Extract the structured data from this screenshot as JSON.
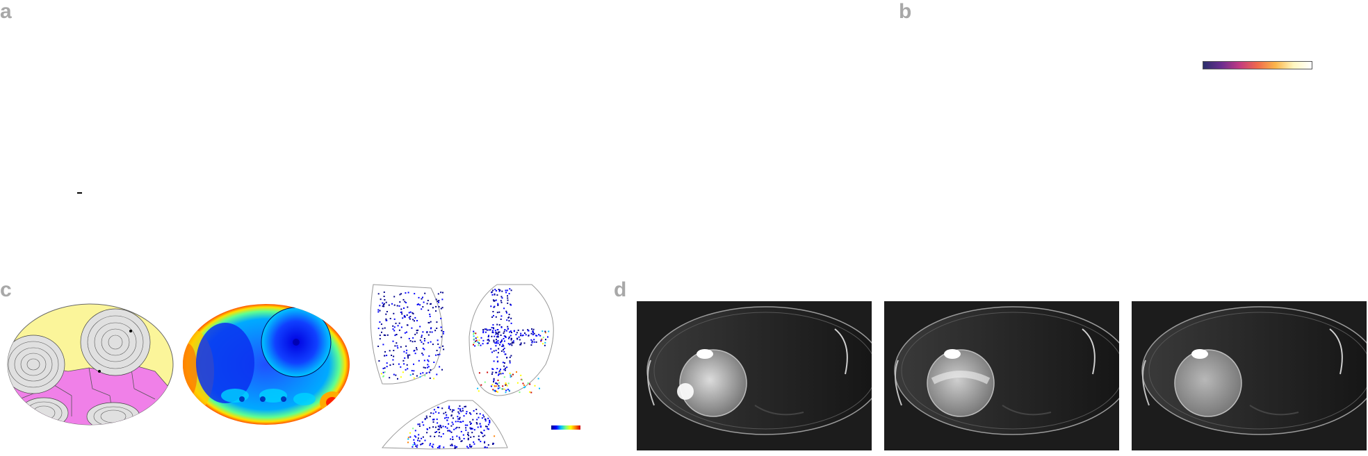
{
  "figure": {
    "panels": {
      "a": {
        "letter": "a"
      },
      "b": {
        "letter": "b"
      },
      "c": {
        "letter": "c"
      },
      "d": {
        "letter": "d"
      }
    },
    "colors": {
      "letter_gray": "#a8a8a8",
      "droplet_fill": "#fbf59a",
      "cell_fill": "#f080e8",
      "streamline_fill": "#d9d9d9",
      "mri_background": "#1a1a1a"
    },
    "colormaps": {
      "panel_b": [
        "#2b2f6b",
        "#6a2d8f",
        "#c13b82",
        "#f06a4c",
        "#fbb64b",
        "#fff7c0",
        "#ffffff"
      ],
      "panel_c": [
        "#00008b",
        "#0000ff",
        "#00bfff",
        "#7fff7f",
        "#ffff00",
        "#ff7f00",
        "#d00000"
      ]
    },
    "mri_frames": [
      {
        "id": "frame-1"
      },
      {
        "id": "frame-2"
      },
      {
        "id": "frame-3"
      }
    ]
  }
}
